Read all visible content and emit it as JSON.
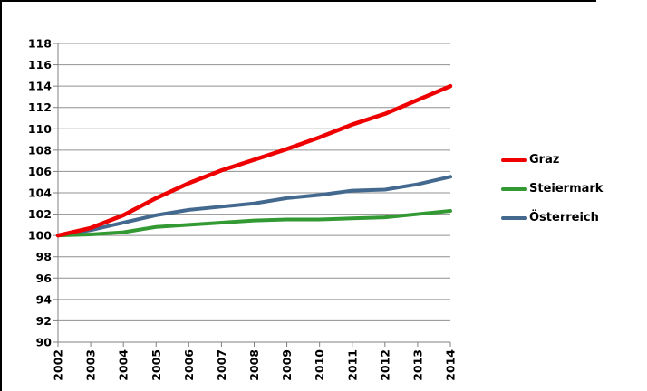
{
  "chart_data": {
    "type": "line",
    "x": [
      2002,
      2003,
      2004,
      2005,
      2006,
      2007,
      2008,
      2009,
      2010,
      2011,
      2012,
      2013,
      2014
    ],
    "series": [
      {
        "name": "Graz",
        "color": "#ee0000",
        "values": [
          100,
          100.7,
          101.9,
          103.5,
          104.9,
          106.1,
          107.1,
          108.1,
          109.2,
          110.4,
          111.4,
          112.7,
          114.0
        ]
      },
      {
        "name": "Steiermark",
        "color": "#339933",
        "values": [
          100,
          100.1,
          100.3,
          100.8,
          101.0,
          101.2,
          101.4,
          101.5,
          101.5,
          101.6,
          101.7,
          102.0,
          102.3
        ]
      },
      {
        "name": "Österreich",
        "color": "#44698f",
        "values": [
          100,
          100.5,
          101.2,
          101.9,
          102.4,
          102.7,
          103.0,
          103.5,
          103.8,
          104.2,
          104.3,
          104.8,
          105.5
        ]
      }
    ],
    "ylim": [
      90,
      118
    ],
    "ytick_step": 2,
    "grid": true,
    "legend_position": "right",
    "axis_color": "#808080",
    "grid_color": "#909090",
    "tick_label_color": "#000000"
  }
}
